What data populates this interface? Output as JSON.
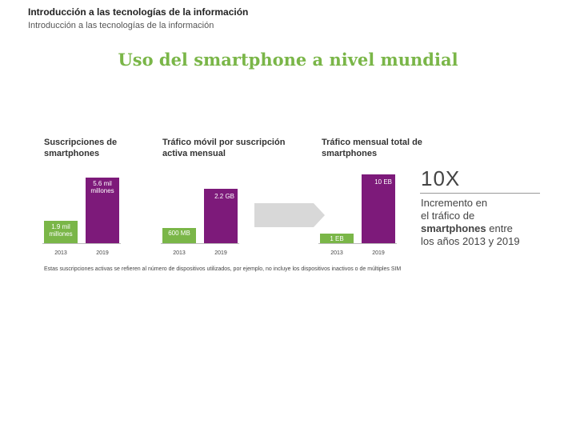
{
  "header": {
    "title": "Introducción a las tecnologías de la información",
    "subtitle": "Introducción a las tecnologías de la información"
  },
  "slide_title": "Uso del smartphone a nivel mundial",
  "colors": {
    "green": "#7ab648",
    "purple": "#7d1a7a",
    "arrow": "#d8d8d8"
  },
  "chart_data": [
    {
      "type": "bar",
      "title": "Suscripciones de smartphones",
      "categories": [
        "2013",
        "2019"
      ],
      "values": [
        1.9,
        5.6
      ],
      "value_labels": [
        "1.9 mil millones",
        "5.6 mil millones"
      ],
      "unit": "mil millones",
      "bar_colors": [
        "#7ab648",
        "#7d1a7a"
      ]
    },
    {
      "type": "bar",
      "title": "Tráfico móvil por suscripción activa mensual",
      "categories": [
        "2013",
        "2019"
      ],
      "values": [
        0.6,
        2.2
      ],
      "value_labels": [
        "600 MB",
        "2.2 GB"
      ],
      "unit": "GB",
      "bar_colors": [
        "#7ab648",
        "#7d1a7a"
      ]
    },
    {
      "type": "bar",
      "title": "Tráfico mensual total de smartphones",
      "categories": [
        "2013",
        "2019"
      ],
      "values": [
        1,
        10
      ],
      "value_labels": [
        "1 EB",
        "10 EB"
      ],
      "unit": "EB",
      "bar_colors": [
        "#7ab648",
        "#7d1a7a"
      ]
    }
  ],
  "callout": {
    "big": "10X",
    "line1": "Incremento en",
    "line2": "el tráfico de",
    "line3": "smartphones",
    "line3_rest": " entre",
    "line4": "los años 2013 y 2019"
  },
  "footnote": "Estas suscripciones activas se refieren al número de dispositivos utilizados, por ejemplo, no incluye los dispositivos inactivos o de múltiples SIM"
}
